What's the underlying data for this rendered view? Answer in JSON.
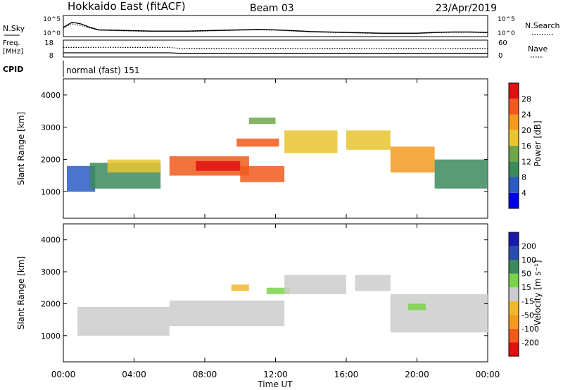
{
  "header": {
    "radar": "Hokkaido East (fitACF)",
    "beam": "Beam 03",
    "date": "23/Apr/2019"
  },
  "labels": {
    "nsky": "N.Sky",
    "nsearch": "N.Search",
    "freq": "Freq.",
    "freq_unit": "[MHz]",
    "nave": "Nave",
    "cpid": "CPID",
    "cpid_value": "normal (fast) 151",
    "xlabel": "Time UT",
    "ylabel_top": "Slant Range [km]",
    "ylabel_bottom": "Slant Range [km]",
    "power_label": "Power [dB]",
    "velocity_label": "Velocity [m s⁻¹]"
  },
  "ticks": {
    "noise_left": [
      "10^5",
      "10^0"
    ],
    "noise_right": [
      "10^5",
      "10^0"
    ],
    "freq_left": [
      "18",
      "8"
    ],
    "freq_right": [
      "60",
      "0"
    ],
    "time": [
      "00:00",
      "04:00",
      "08:00",
      "12:00",
      "16:00",
      "20:00",
      "00:00"
    ],
    "range": [
      "1000",
      "2000",
      "3000",
      "4000"
    ],
    "power": [
      "4",
      "8",
      "12",
      "16",
      "20",
      "24",
      "28"
    ],
    "velocity": [
      "-200",
      "-100",
      "-50",
      "-15",
      "15",
      "50",
      "100",
      "200"
    ]
  },
  "colors": {
    "power_scale": [
      "#0000ee",
      "#2a5cc4",
      "#3c8a5c",
      "#6fa64a",
      "#e8c630",
      "#f39a22",
      "#f05a1c",
      "#e01010"
    ],
    "velocity_scale": [
      "#e01010",
      "#f05a1c",
      "#f39a22",
      "#f0b830",
      "#cccccc",
      "#7bd24a",
      "#3c8a5c",
      "#2a4cb0",
      "#1a1aaa"
    ]
  },
  "chart_data": [
    {
      "type": "line",
      "name": "noise",
      "x_unit": "hours UT",
      "x": [
        0,
        0.5,
        1,
        1.5,
        2,
        3,
        4,
        5,
        6,
        7,
        8,
        9,
        10,
        11,
        12,
        13,
        14,
        15,
        16,
        17,
        18,
        19,
        20,
        21,
        22,
        23,
        24
      ],
      "series": [
        {
          "name": "N.Sky",
          "values": [
            2.2,
            3.4,
            3.0,
            2.2,
            1.6,
            1.5,
            1.4,
            1.3,
            1.3,
            1.3,
            1.4,
            1.5,
            1.6,
            1.7,
            1.6,
            1.4,
            1.2,
            1.1,
            1.0,
            0.9,
            0.8,
            0.8,
            0.8,
            1.0,
            1.1,
            1.1,
            1.0
          ]
        },
        {
          "name": "N.Search",
          "values": [
            2.0,
            3.0,
            2.6,
            2.0,
            1.5,
            1.4,
            1.3,
            1.2,
            1.2,
            1.2,
            1.3,
            1.4,
            1.5,
            1.6,
            1.5,
            1.3,
            1.1,
            1.0,
            0.9,
            0.8,
            0.7,
            0.7,
            0.7,
            0.9,
            1.0,
            1.0,
            0.9
          ]
        }
      ],
      "ylim": [
        0,
        5
      ]
    },
    {
      "type": "line",
      "name": "frequency_nave",
      "x_unit": "hours UT",
      "x": [
        0,
        6,
        6.5,
        24
      ],
      "series": [
        {
          "name": "Freq.",
          "values": [
            10.5,
            10.5,
            10.2,
            10.2
          ]
        },
        {
          "name": "Nave",
          "values": [
            34,
            34,
            31,
            31
          ]
        }
      ],
      "ylim": [
        8,
        18
      ]
    },
    {
      "type": "heatmap",
      "name": "power",
      "xlim": [
        0,
        24
      ],
      "ylim": [
        180,
        4500
      ],
      "x_unit": "hours UT",
      "y_unit": "km",
      "regions": [
        {
          "x": [
            0.2,
            1.8
          ],
          "y": [
            1000,
            1800
          ],
          "value": 8
        },
        {
          "x": [
            1.5,
            5.5
          ],
          "y": [
            1100,
            1900
          ],
          "value": 12
        },
        {
          "x": [
            2.5,
            5.5
          ],
          "y": [
            1600,
            2000
          ],
          "value": 16
        },
        {
          "x": [
            6.0,
            10.5
          ],
          "y": [
            1500,
            2100
          ],
          "value": 24
        },
        {
          "x": [
            7.5,
            10.0
          ],
          "y": [
            1650,
            1950
          ],
          "value": 28
        },
        {
          "x": [
            10.0,
            12.5
          ],
          "y": [
            1300,
            1800
          ],
          "value": 26
        },
        {
          "x": [
            9.8,
            12.2
          ],
          "y": [
            2400,
            2650
          ],
          "value": 24
        },
        {
          "x": [
            12.5,
            15.5
          ],
          "y": [
            2200,
            2900
          ],
          "value": 16
        },
        {
          "x": [
            16.0,
            18.5
          ],
          "y": [
            2300,
            2900
          ],
          "value": 18
        },
        {
          "x": [
            18.5,
            21.0
          ],
          "y": [
            1600,
            2400
          ],
          "value": 20
        },
        {
          "x": [
            21.0,
            24.0
          ],
          "y": [
            1100,
            2000
          ],
          "value": 12
        },
        {
          "x": [
            10.5,
            12.0
          ],
          "y": [
            3100,
            3300
          ],
          "value": 14
        }
      ]
    },
    {
      "type": "heatmap",
      "name": "velocity",
      "xlim": [
        0,
        24
      ],
      "ylim": [
        180,
        4500
      ],
      "x_unit": "hours UT",
      "y_unit": "km",
      "regions": [
        {
          "x": [
            0.8,
            6.0
          ],
          "y": [
            1000,
            1900
          ],
          "value": 0
        },
        {
          "x": [
            6.0,
            12.5
          ],
          "y": [
            1300,
            2100
          ],
          "value": 0
        },
        {
          "x": [
            9.5,
            10.5
          ],
          "y": [
            2400,
            2600
          ],
          "value": -40
        },
        {
          "x": [
            11.5,
            12.8
          ],
          "y": [
            2300,
            2500
          ],
          "value": 40
        },
        {
          "x": [
            12.5,
            16.0
          ],
          "y": [
            2300,
            2900
          ],
          "value": 0
        },
        {
          "x": [
            16.5,
            18.5
          ],
          "y": [
            2400,
            2900
          ],
          "value": 0
        },
        {
          "x": [
            18.5,
            24.0
          ],
          "y": [
            1100,
            2300
          ],
          "value": 0
        },
        {
          "x": [
            19.5,
            20.5
          ],
          "y": [
            1800,
            2000
          ],
          "value": 30
        }
      ]
    }
  ]
}
